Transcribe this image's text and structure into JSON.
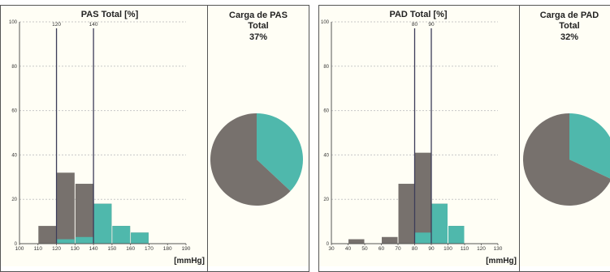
{
  "chart_data": [
    {
      "type": "bar",
      "title": "PAS Total [%]",
      "xlabel": "[mmHg]",
      "ylim": [
        0,
        100
      ],
      "y_ticks": [
        "0",
        "20",
        "40",
        "60",
        "80",
        "100"
      ],
      "x_ticks": [
        "100",
        "110",
        "120",
        "130",
        "140",
        "150",
        "160",
        "170",
        "180",
        "190"
      ],
      "bin_width": 10,
      "bars": [
        {
          "x": 110,
          "total": 8,
          "above": 0
        },
        {
          "x": 120,
          "total": 32,
          "above": 2
        },
        {
          "x": 130,
          "total": 27,
          "above": 3
        },
        {
          "x": 140,
          "total": 18,
          "above": 18
        },
        {
          "x": 150,
          "total": 8,
          "above": 8
        },
        {
          "x": 160,
          "total": 5,
          "above": 5
        }
      ],
      "thresholds": [
        {
          "x": 120,
          "label": "120"
        },
        {
          "x": 140,
          "label": "140"
        }
      ],
      "grid": true
    },
    {
      "type": "pie",
      "title_lines": [
        "Carga de PAS",
        "Total"
      ],
      "value_label": "37%",
      "slices": [
        {
          "value": 37,
          "color": "#4fb8ac"
        },
        {
          "value": 63,
          "color": "#77716d"
        }
      ]
    },
    {
      "type": "bar",
      "title": "PAD Total [%]",
      "xlabel": "[mmHg]",
      "ylim": [
        0,
        100
      ],
      "y_ticks": [
        "0",
        "20",
        "40",
        "60",
        "80",
        "100"
      ],
      "x_ticks": [
        "30",
        "40",
        "50",
        "60",
        "70",
        "80",
        "90",
        "100",
        "110",
        "120",
        "130"
      ],
      "bin_width": 10,
      "bars": [
        {
          "x": 40,
          "total": 2,
          "above": 0
        },
        {
          "x": 60,
          "total": 3,
          "above": 0
        },
        {
          "x": 70,
          "total": 27,
          "above": 0
        },
        {
          "x": 80,
          "total": 41,
          "above": 5
        },
        {
          "x": 90,
          "total": 18,
          "above": 18
        },
        {
          "x": 100,
          "total": 8,
          "above": 8
        }
      ],
      "thresholds": [
        {
          "x": 80,
          "label": "80"
        },
        {
          "x": 90,
          "label": "90"
        }
      ],
      "grid": true
    },
    {
      "type": "pie",
      "title_lines": [
        "Carga de PAD",
        "Total"
      ],
      "value_label": "32%",
      "slices": [
        {
          "value": 32,
          "color": "#4fb8ac"
        },
        {
          "value": 68,
          "color": "#77716d"
        }
      ]
    }
  ],
  "colors": {
    "below": "#77716d",
    "above": "#4fb8ac",
    "threshold": "#3c3c58",
    "grid": "#c8c8c8",
    "axis": "#555555"
  }
}
